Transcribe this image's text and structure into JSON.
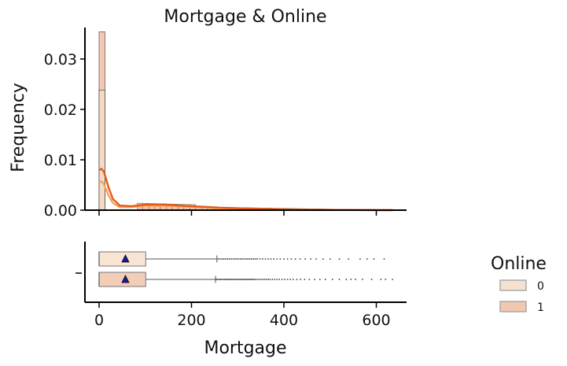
{
  "chart_data": {
    "type": "histogram+boxplot",
    "title": "Mortgage & Online",
    "xlabel": "Mortgage",
    "ylabel": "Frequency",
    "xlim": [
      -30,
      665
    ],
    "ylim": [
      0,
      0.037
    ],
    "x_ticks": [
      0,
      200,
      400,
      600
    ],
    "x_tick_labels": [
      "0",
      "200",
      "400",
      "600"
    ],
    "y_ticks": [
      0,
      0.01,
      0.02,
      0.03
    ],
    "y_tick_labels": [
      "0.00",
      "0.01",
      "0.02",
      "0.03"
    ],
    "grid": false,
    "legend": {
      "title": "Online",
      "position": "right",
      "entries": [
        {
          "label": "0",
          "color": "#f6e1cf"
        },
        {
          "label": "1",
          "color": "#f2c7b0"
        }
      ]
    },
    "histogram": {
      "bin_width": 12.7,
      "series": [
        {
          "online": "0",
          "color": "#f6dcc8",
          "bins": [
            {
              "x0": 0,
              "x1": 12.7,
              "y": 0.0238
            }
          ]
        },
        {
          "online": "1",
          "color": "#f4c3a8",
          "bins": [
            {
              "x0": 0,
              "x1": 12.7,
              "y": 0.0354
            }
          ]
        }
      ],
      "tail": {
        "x0": 82,
        "x1": 635,
        "y_max": 0.0014
      }
    },
    "kde": [
      {
        "online": "0",
        "color": "#f5a35e",
        "points": [
          [
            0,
            0.0055
          ],
          [
            5,
            0.0057
          ],
          [
            10,
            0.0052
          ],
          [
            15,
            0.0042
          ],
          [
            20,
            0.003
          ],
          [
            30,
            0.0014
          ],
          [
            45,
            0.0006
          ],
          [
            70,
            0.0006
          ],
          [
            100,
            0.0009
          ],
          [
            140,
            0.0009
          ],
          [
            200,
            0.0007
          ],
          [
            260,
            0.0004
          ],
          [
            330,
            0.0002
          ],
          [
            420,
            0.0001
          ],
          [
            520,
            5e-05
          ],
          [
            635,
            0.0
          ]
        ]
      },
      {
        "online": "1",
        "color": "#e55b16",
        "points": [
          [
            0,
            0.008
          ],
          [
            5,
            0.0082
          ],
          [
            10,
            0.0077
          ],
          [
            15,
            0.0063
          ],
          [
            20,
            0.0046
          ],
          [
            30,
            0.0022
          ],
          [
            45,
            0.0009
          ],
          [
            70,
            0.0008
          ],
          [
            100,
            0.0011
          ],
          [
            140,
            0.0011
          ],
          [
            200,
            0.0008
          ],
          [
            260,
            0.0005
          ],
          [
            330,
            0.0003
          ],
          [
            420,
            0.0001
          ],
          [
            520,
            5e-05
          ],
          [
            635,
            0.0
          ]
        ]
      }
    ],
    "boxplots": [
      {
        "online": "0",
        "color": "#f9e5d4",
        "q1": 0,
        "median": 0,
        "q3": 101,
        "whisker_low": 0,
        "whisker_high": 255,
        "mean": 57,
        "max": 617,
        "outliers": [
          258,
          262,
          266,
          270,
          274,
          278,
          282,
          286,
          290,
          294,
          298,
          302,
          306,
          310,
          314,
          318,
          322,
          326,
          330,
          334,
          338,
          342,
          348,
          354,
          360,
          366,
          372,
          378,
          385,
          392,
          400,
          408,
          416,
          425,
          435,
          446,
          458,
          470,
          485,
          500,
          520,
          540,
          565,
          580,
          595,
          617
        ]
      },
      {
        "online": "1",
        "color": "#f2cdb8",
        "q1": 0,
        "median": 0,
        "q3": 101,
        "whisker_low": 0,
        "whisker_high": 252,
        "mean": 57,
        "max": 635,
        "outliers": [
          254,
          257,
          260,
          263,
          266,
          269,
          272,
          275,
          278,
          281,
          284,
          287,
          290,
          293,
          296,
          299,
          302,
          305,
          308,
          311,
          314,
          317,
          320,
          323,
          326,
          329,
          332,
          335,
          338,
          342,
          346,
          350,
          354,
          358,
          362,
          366,
          370,
          375,
          380,
          385,
          390,
          396,
          402,
          408,
          414,
          420,
          428,
          436,
          445,
          455,
          466,
          478,
          490,
          505,
          520,
          535,
          545,
          555,
          570,
          590,
          610,
          620,
          635
        ]
      }
    ]
  }
}
